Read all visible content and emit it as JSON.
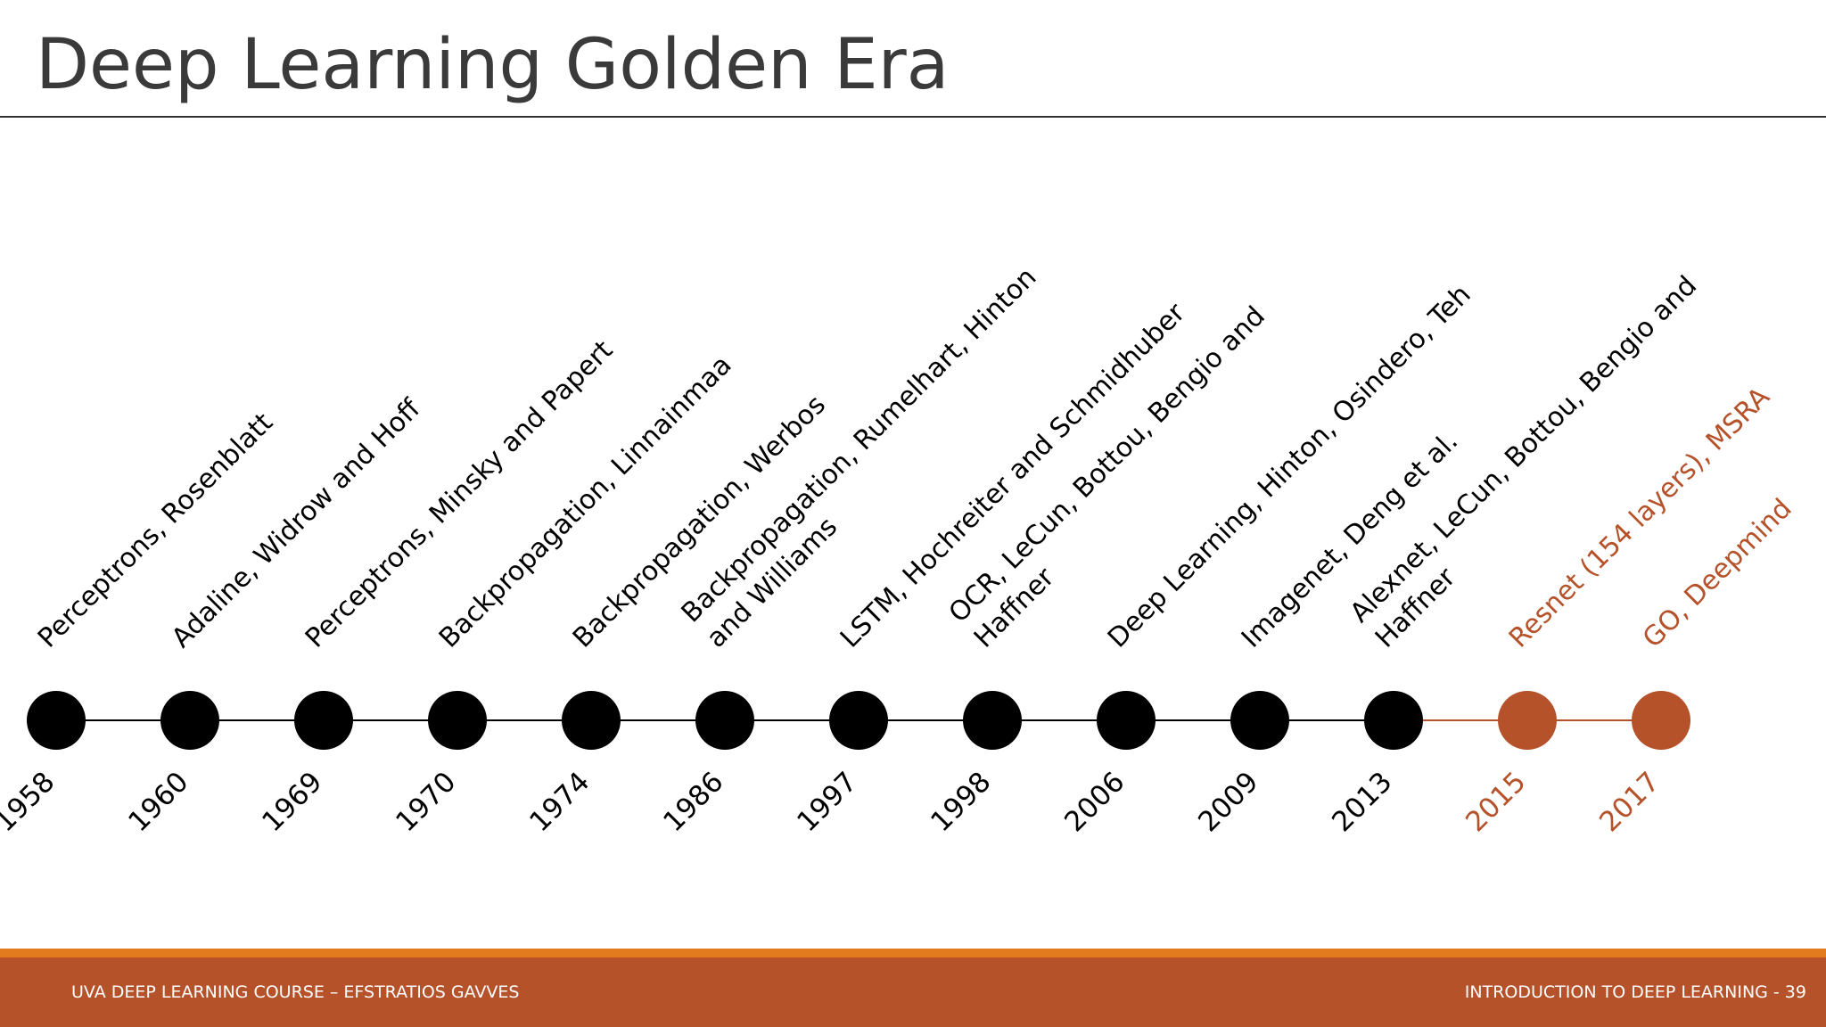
{
  "slide": {
    "title": "Deep Learning Golden Era",
    "footer_left": "UVA DEEP LEARNING COURSE – EFSTRATIOS GAVVES",
    "footer_right": "INTRODUCTION TO DEEP LEARNING - 39"
  },
  "colors": {
    "past": "#000000",
    "recent": "#b5522a",
    "title": "#3a3a3a",
    "footer": "#b5522a",
    "footer_stripe": "#e27a1e"
  },
  "timeline": [
    {
      "year": "1958",
      "label": [
        "Perceptrons, Rosenblatt"
      ],
      "recent": false
    },
    {
      "year": "1960",
      "label": [
        "Adaline, Widrow and Hoff"
      ],
      "recent": false
    },
    {
      "year": "1969",
      "label": [
        "Perceptrons, Minsky and Papert"
      ],
      "recent": false
    },
    {
      "year": "1970",
      "label": [
        "Backpropagation, Linnainmaa"
      ],
      "recent": false
    },
    {
      "year": "1974",
      "label": [
        "Backpropagation, Werbos"
      ],
      "recent": false
    },
    {
      "year": "1986",
      "label": [
        "Backpropagation, Rumelhart, Hinton",
        "and Williams"
      ],
      "recent": false
    },
    {
      "year": "1997",
      "label": [
        "LSTM, Hochreiter and Schmidhuber"
      ],
      "recent": false
    },
    {
      "year": "1998",
      "label": [
        "OCR, LeCun, Bottou, Bengio and",
        "Haffner"
      ],
      "recent": false
    },
    {
      "year": "2006",
      "label": [
        "Deep Learning, Hinton, Osindero, Teh"
      ],
      "recent": false
    },
    {
      "year": "2009",
      "label": [
        "Imagenet, Deng et al."
      ],
      "recent": false
    },
    {
      "year": "2013",
      "label": [
        "Alexnet, LeCun, Bottou, Bengio and",
        "Haffner"
      ],
      "recent": false
    },
    {
      "year": "2015",
      "label": [
        "Resnet (154 layers), MSRA"
      ],
      "recent": true
    },
    {
      "year": "2017",
      "label": [
        "GO, Deepmind"
      ],
      "recent": true
    }
  ]
}
